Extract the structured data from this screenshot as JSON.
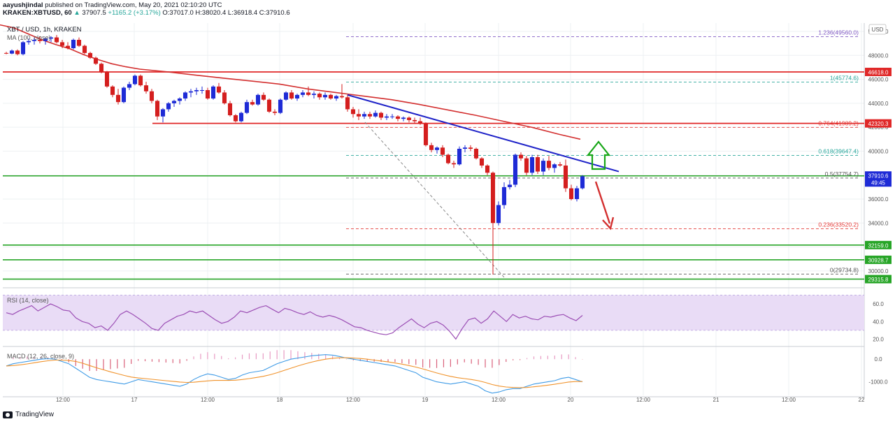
{
  "header": {
    "author": "aayushjindal",
    "published": "published on TradingView.com, May 20, 2021 02:10:20 UTC",
    "ticker": "KRAKEN:XBTUSD, 60",
    "last": "37907.5",
    "change": "+1165.2 (+3.17%)",
    "o": "O:37017.0",
    "h": "H:38020.4",
    "l": "L:36918.4",
    "c": "C:37910.6"
  },
  "chart_data": {
    "type": "candlestick",
    "title": "XBT / USD, 1h, KRAKEN",
    "ma_label": "MA (100, close)",
    "currency": "USD",
    "x_ticks": [
      "12:00",
      "17",
      "12:00",
      "18",
      "12:00",
      "19",
      "12:00",
      "20",
      "12:00",
      "21",
      "12:00",
      "22"
    ],
    "y_ticks": [
      30000,
      32000,
      34000,
      36000,
      38000,
      40000,
      42000,
      44000,
      46000,
      48000,
      50000
    ],
    "ylim": [
      29000,
      50700
    ],
    "candles": [
      [
        48200,
        48300,
        48100,
        48150
      ],
      [
        48150,
        48500,
        48100,
        48400
      ],
      [
        48400,
        48500,
        48000,
        48100
      ],
      [
        48100,
        49200,
        48000,
        49100
      ],
      [
        49100,
        49400,
        48900,
        49200
      ],
      [
        49200,
        49500,
        48900,
        49300
      ],
      [
        49300,
        49600,
        49000,
        49200
      ],
      [
        49200,
        49500,
        48900,
        49400
      ],
      [
        49400,
        49600,
        49100,
        49500
      ],
      [
        49500,
        49700,
        49000,
        49100
      ],
      [
        49100,
        49300,
        48600,
        48800
      ],
      [
        48800,
        49100,
        48500,
        48600
      ],
      [
        48600,
        49400,
        48500,
        49300
      ],
      [
        49300,
        49500,
        48700,
        48800
      ],
      [
        48800,
        48900,
        48100,
        48200
      ],
      [
        48200,
        48300,
        47700,
        47800
      ],
      [
        47800,
        47900,
        47200,
        47300
      ],
      [
        47300,
        47400,
        46500,
        46600
      ],
      [
        46600,
        46700,
        45300,
        45400
      ],
      [
        45400,
        45500,
        44500,
        44700
      ],
      [
        44700,
        45200,
        43900,
        44100
      ],
      [
        44100,
        45400,
        44000,
        45300
      ],
      [
        45300,
        45800,
        45100,
        45600
      ],
      [
        45600,
        46400,
        45500,
        46300
      ],
      [
        46300,
        46400,
        45400,
        45500
      ],
      [
        45500,
        45800,
        44800,
        45000
      ],
      [
        45000,
        45200,
        44000,
        44200
      ],
      [
        44200,
        44300,
        42600,
        42900
      ],
      [
        42900,
        43600,
        42400,
        43500
      ],
      [
        43500,
        44100,
        43300,
        44000
      ],
      [
        44000,
        44300,
        43700,
        44200
      ],
      [
        44200,
        44500,
        43900,
        44400
      ],
      [
        44400,
        45000,
        44200,
        44900
      ],
      [
        44900,
        45200,
        44500,
        45000
      ],
      [
        45000,
        45300,
        44700,
        45100
      ],
      [
        45100,
        45400,
        44800,
        45100
      ],
      [
        45100,
        45300,
        44300,
        44400
      ],
      [
        44400,
        45500,
        44300,
        45400
      ],
      [
        45400,
        45700,
        44800,
        44900
      ],
      [
        44900,
        45100,
        43900,
        44000
      ],
      [
        44000,
        44200,
        42900,
        43000
      ],
      [
        43000,
        43100,
        42400,
        42500
      ],
      [
        42500,
        43300,
        42400,
        43200
      ],
      [
        43200,
        44300,
        43100,
        44100
      ],
      [
        44100,
        44300,
        43800,
        43900
      ],
      [
        43900,
        44800,
        43800,
        44700
      ],
      [
        44700,
        44900,
        44200,
        44300
      ],
      [
        44300,
        44400,
        43200,
        43300
      ],
      [
        43300,
        43500,
        43000,
        43200
      ],
      [
        43200,
        44400,
        43100,
        44300
      ],
      [
        44300,
        45000,
        44200,
        44900
      ],
      [
        44900,
        45100,
        44300,
        44400
      ],
      [
        44400,
        44800,
        44200,
        44700
      ],
      [
        44700,
        45100,
        44500,
        44900
      ],
      [
        44900,
        45400,
        44600,
        44700
      ],
      [
        44700,
        45000,
        44400,
        44800
      ],
      [
        44800,
        44900,
        44300,
        44500
      ],
      [
        44500,
        44900,
        44300,
        44700
      ],
      [
        44700,
        44800,
        44300,
        44400
      ],
      [
        44400,
        44700,
        44200,
        44600
      ],
      [
        44600,
        45600,
        44400,
        44500
      ],
      [
        44500,
        44700,
        43300,
        43500
      ],
      [
        43500,
        43700,
        42800,
        43100
      ],
      [
        43100,
        43500,
        42600,
        42900
      ],
      [
        42900,
        43300,
        42700,
        43100
      ],
      [
        43100,
        43300,
        42700,
        42900
      ],
      [
        42900,
        43400,
        42800,
        43200
      ],
      [
        43200,
        43300,
        42600,
        42800
      ],
      [
        42800,
        43100,
        42600,
        42900
      ],
      [
        42900,
        43100,
        42700,
        42900
      ],
      [
        42900,
        43000,
        42500,
        42700
      ],
      [
        42700,
        42900,
        42500,
        42800
      ],
      [
        42800,
        42900,
        42400,
        42600
      ],
      [
        42600,
        42800,
        42300,
        42500
      ],
      [
        42500,
        42800,
        42200,
        42300
      ],
      [
        42300,
        42400,
        40400,
        40500
      ],
      [
        40500,
        40700,
        39900,
        40100
      ],
      [
        40100,
        40400,
        39800,
        40300
      ],
      [
        40300,
        40500,
        39500,
        39700
      ],
      [
        39700,
        39800,
        38900,
        39000
      ],
      [
        39000,
        39200,
        38600,
        38900
      ],
      [
        38900,
        40400,
        38800,
        40200
      ],
      [
        40200,
        40500,
        39900,
        40300
      ],
      [
        40300,
        40500,
        40000,
        40200
      ],
      [
        40200,
        40300,
        39300,
        39400
      ],
      [
        39400,
        39500,
        38600,
        38800
      ],
      [
        38800,
        38900,
        38000,
        38200
      ],
      [
        38200,
        38300,
        29700,
        34000
      ],
      [
        34000,
        35800,
        33800,
        35500
      ],
      [
        35500,
        37400,
        35200,
        37000
      ],
      [
        37000,
        37600,
        36800,
        37200
      ],
      [
        37200,
        39800,
        37000,
        39700
      ],
      [
        39700,
        39900,
        39200,
        39400
      ],
      [
        39400,
        39600,
        38000,
        38200
      ],
      [
        38200,
        39700,
        38000,
        39500
      ],
      [
        39500,
        39700,
        38100,
        38300
      ],
      [
        38300,
        39400,
        38000,
        39200
      ],
      [
        39200,
        39600,
        38400,
        38600
      ],
      [
        38600,
        39000,
        38200,
        38900
      ],
      [
        38900,
        39100,
        38700,
        38800
      ],
      [
        38800,
        39300,
        36600,
        36900
      ],
      [
        36900,
        37200,
        35900,
        36000
      ],
      [
        36000,
        37100,
        35800,
        36900
      ],
      [
        36900,
        38000,
        36800,
        37900
      ]
    ],
    "ma100": [
      [
        0,
        50550
      ],
      [
        20,
        50300
      ],
      [
        40,
        49800
      ],
      [
        60,
        49300
      ],
      [
        80,
        48900
      ],
      [
        100,
        48550
      ],
      [
        120,
        48050
      ],
      [
        140,
        47650
      ],
      [
        160,
        47300
      ],
      [
        180,
        47050
      ],
      [
        200,
        46850
      ],
      [
        240,
        46620
      ],
      [
        280,
        46350
      ],
      [
        320,
        46100
      ],
      [
        360,
        45850
      ],
      [
        400,
        45600
      ],
      [
        440,
        45200
      ],
      [
        480,
        44900
      ],
      [
        500,
        44750
      ],
      [
        520,
        44600
      ],
      [
        560,
        44300
      ],
      [
        600,
        43900
      ],
      [
        640,
        43450
      ],
      [
        680,
        43000
      ],
      [
        720,
        42500
      ],
      [
        760,
        42000
      ],
      [
        800,
        41400
      ],
      [
        830,
        41000
      ]
    ],
    "resistance_lines": [
      {
        "label": "46618.0",
        "value": 46618
      },
      {
        "label": "42320.3",
        "value": 42320
      }
    ],
    "support_lines": [
      {
        "label": "37940.4",
        "value": 37940
      },
      {
        "label": "32159.0",
        "value": 32159
      },
      {
        "label": "30928.7",
        "value": 30929
      },
      {
        "label": "29315.8",
        "value": 29316
      }
    ],
    "fib_levels": [
      {
        "label": "1.236(49560.0)",
        "value": 49560,
        "color": "#7e57c2"
      },
      {
        "label": "1(45774.6)",
        "value": 45774,
        "color": "#26a69a"
      },
      {
        "label": "0.764(41989.2)",
        "value": 41989,
        "color": "#e53935"
      },
      {
        "label": "0.618(39647.4)",
        "value": 39647,
        "color": "#26a69a"
      },
      {
        "label": "0.5(37754.7)",
        "value": 37754,
        "color": "#555555"
      },
      {
        "label": "0.236(33520.2)",
        "value": 33520,
        "color": "#e53935"
      },
      {
        "label": "0(29734.8)",
        "value": 29735,
        "color": "#555555"
      }
    ],
    "price_badge": {
      "label": "37910.6",
      "timer": "49:45",
      "value": 37910
    },
    "trendline": {
      "from": [
        44700,
        0
      ],
      "to": [
        38300,
        1
      ]
    },
    "rsi": {
      "label": "RSI (14, close)",
      "y_ticks": [
        20.0,
        40.0,
        60.0
      ],
      "band": [
        30,
        70
      ],
      "values": [
        50,
        48,
        52,
        55,
        58,
        52,
        56,
        60,
        57,
        53,
        52,
        44,
        40,
        38,
        33,
        35,
        30,
        38,
        48,
        52,
        48,
        43,
        38,
        32,
        30,
        38,
        42,
        46,
        48,
        52,
        50,
        52,
        47,
        42,
        38,
        40,
        45,
        52,
        50,
        53,
        56,
        58,
        54,
        50,
        55,
        53,
        50,
        48,
        51,
        47,
        45,
        47,
        45,
        42,
        38,
        34,
        33,
        30,
        28,
        26,
        25,
        27,
        33,
        38,
        43,
        37,
        33,
        38,
        40,
        36,
        29,
        20,
        32,
        42,
        44,
        38,
        43,
        52,
        46,
        40,
        48,
        44,
        46,
        43,
        42,
        46,
        45,
        47,
        48,
        44,
        41,
        47
      ],
      "ylim": [
        14,
        72
      ]
    },
    "macd": {
      "label": "MACD (12, 26, close, 9)",
      "y_ticks": [
        "0.0",
        "-1000.0"
      ],
      "ylim": [
        -1600,
        500
      ],
      "macd_line": [
        -300,
        -200,
        -150,
        -100,
        -50,
        0,
        20,
        0,
        -100,
        -200,
        -400,
        -600,
        -800,
        -900,
        -950,
        -1000,
        -1050,
        -1100,
        -1000,
        -900,
        -950,
        -1000,
        -1050,
        -1100,
        -1150,
        -1200,
        -1100,
        -900,
        -750,
        -650,
        -700,
        -800,
        -900,
        -850,
        -700,
        -600,
        -550,
        -500,
        -350,
        -200,
        -100,
        0,
        50,
        100,
        150,
        180,
        200,
        180,
        120,
        50,
        0,
        -50,
        -100,
        -150,
        -200,
        -250,
        -300,
        -400,
        -500,
        -600,
        -800,
        -900,
        -1000,
        -1050,
        -1100,
        -1050,
        -1000,
        -1100,
        -1200,
        -1400,
        -1500,
        -1450,
        -1350,
        -1300,
        -1300,
        -1200,
        -1100,
        -1050,
        -1000,
        -950,
        -850,
        -800,
        -900,
        -1000
      ],
      "signal_line": [
        -300,
        -280,
        -250,
        -210,
        -160,
        -110,
        -70,
        -40,
        -40,
        -60,
        -100,
        -180,
        -280,
        -380,
        -470,
        -560,
        -640,
        -720,
        -790,
        -830,
        -860,
        -890,
        -920,
        -950,
        -980,
        -1010,
        -1030,
        -1020,
        -990,
        -960,
        -940,
        -940,
        -940,
        -930,
        -900,
        -860,
        -810,
        -760,
        -690,
        -600,
        -500,
        -400,
        -300,
        -210,
        -130,
        -60,
        0,
        40,
        60,
        60,
        50,
        30,
        0,
        -40,
        -80,
        -120,
        -170,
        -220,
        -280,
        -350,
        -430,
        -520,
        -610,
        -690,
        -760,
        -820,
        -860,
        -900,
        -950,
        -1030,
        -1120,
        -1190,
        -1230,
        -1250,
        -1260,
        -1250,
        -1220,
        -1190,
        -1150,
        -1110,
        -1060,
        -1010,
        -990,
        -990
      ],
      "hist": [
        0,
        80,
        100,
        110,
        110,
        110,
        90,
        40,
        -60,
        -140,
        -300,
        -420,
        -520,
        -520,
        -480,
        -440,
        -410,
        -380,
        -210,
        -70,
        -90,
        -110,
        -130,
        -150,
        -170,
        -190,
        -70,
        120,
        240,
        310,
        240,
        140,
        40,
        80,
        200,
        260,
        260,
        260,
        340,
        400,
        400,
        400,
        350,
        310,
        280,
        240,
        200,
        140,
        60,
        -10,
        -50,
        -80,
        -100,
        -110,
        -120,
        -130,
        -130,
        -180,
        -220,
        -250,
        -370,
        -380,
        -390,
        -360,
        -340,
        -230,
        -140,
        -200,
        -250,
        -370,
        -380,
        -260,
        -120,
        -50,
        -40,
        50,
        120,
        140,
        150,
        160,
        210,
        210,
        90,
        -10
      ]
    }
  }
}
